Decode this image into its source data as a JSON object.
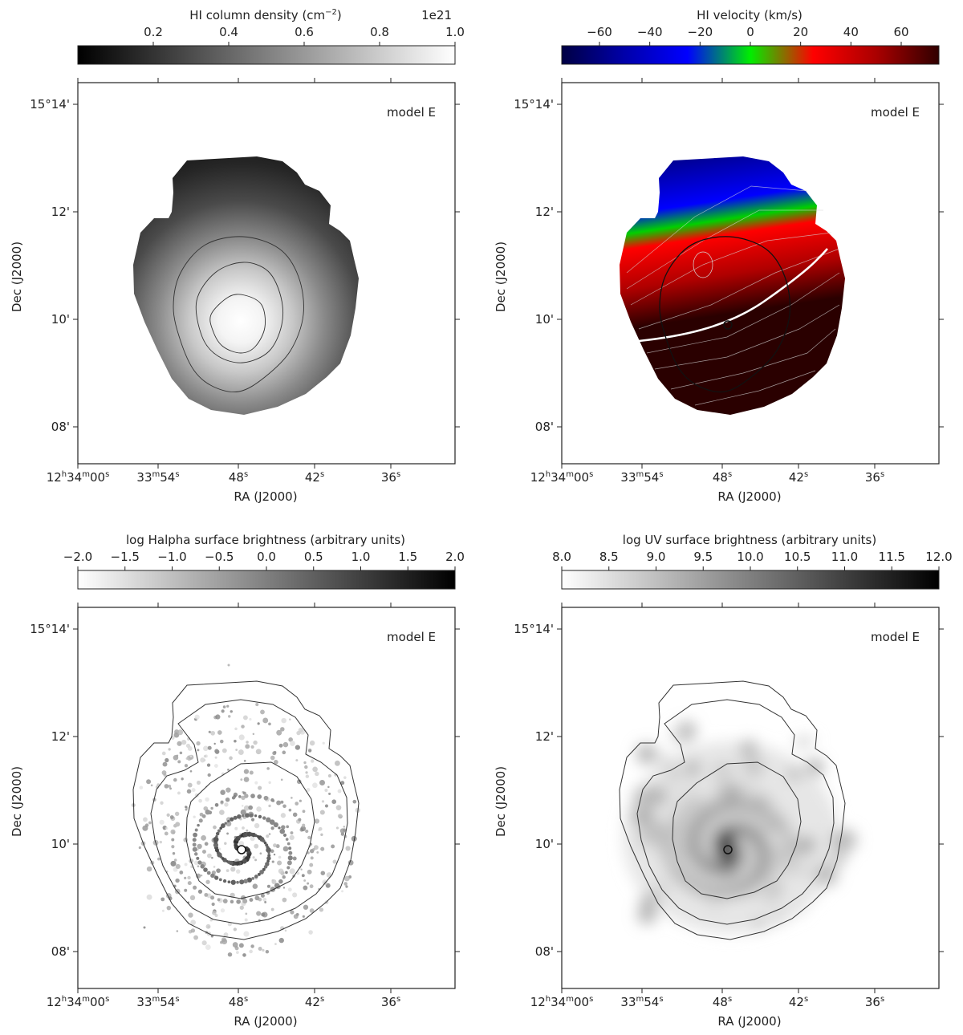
{
  "chart_data": [
    {
      "type": "heatmap",
      "panel": "top-left",
      "annotation": "model E",
      "colorbar": {
        "label": "HI column density (cm−2)",
        "ticks": [
          "0.2",
          "0.4",
          "0.6",
          "0.8",
          "1.0"
        ],
        "tick_values": [
          0.2,
          0.4,
          0.6,
          0.8,
          1.0
        ],
        "range": [
          0.0,
          1.0
        ],
        "scale_text": "1e21",
        "colormap": [
          "#000000",
          "#ffffff"
        ]
      },
      "xlabel": "RA (J2000)",
      "ylabel": "Dec (J2000)",
      "xticks": [
        {
          "h": "12",
          "hu": "h",
          "m": "34",
          "mu": "m",
          "s": "00",
          "su": "s"
        },
        {
          "h": "",
          "hu": "",
          "m": "33",
          "mu": "m",
          "s": "54",
          "su": "s"
        },
        {
          "h": "",
          "hu": "",
          "m": "",
          "mu": "",
          "s": "48",
          "su": "s"
        },
        {
          "h": "",
          "hu": "",
          "m": "",
          "mu": "",
          "s": "42",
          "su": "s"
        },
        {
          "h": "",
          "hu": "",
          "m": "",
          "mu": "",
          "s": "36",
          "su": "s"
        }
      ],
      "yticks": [
        "15°14'",
        "12'",
        "10'",
        "08'"
      ]
    },
    {
      "type": "heatmap",
      "panel": "top-right",
      "annotation": "model E",
      "colorbar": {
        "label": "HI velocity (km/s)",
        "ticks": [
          "−60",
          "−40",
          "−20",
          "0",
          "20",
          "40",
          "60"
        ],
        "tick_values": [
          -60,
          -40,
          -20,
          0,
          20,
          40,
          60
        ],
        "range": [
          -75,
          75
        ],
        "colormap": [
          "#000044",
          "#0000aa",
          "#0000ff",
          "#00ee00",
          "#ff0000",
          "#aa0000",
          "#300000"
        ]
      },
      "xlabel": "RA (J2000)",
      "ylabel": "Dec (J2000)",
      "xticks": [
        {
          "h": "12",
          "hu": "h",
          "m": "34",
          "mu": "m",
          "s": "00",
          "su": "s"
        },
        {
          "h": "",
          "hu": "",
          "m": "33",
          "mu": "m",
          "s": "54",
          "su": "s"
        },
        {
          "h": "",
          "hu": "",
          "m": "",
          "mu": "",
          "s": "48",
          "su": "s"
        },
        {
          "h": "",
          "hu": "",
          "m": "",
          "mu": "",
          "s": "42",
          "su": "s"
        },
        {
          "h": "",
          "hu": "",
          "m": "",
          "mu": "",
          "s": "36",
          "su": "s"
        }
      ],
      "yticks": [
        "15°14'",
        "12'",
        "10'",
        "08'"
      ]
    },
    {
      "type": "heatmap",
      "panel": "bottom-left",
      "annotation": "model E",
      "colorbar": {
        "label": "log Halpha surface brightness (arbitrary units)",
        "ticks": [
          "−2.0",
          "−1.5",
          "−1.0",
          "−0.5",
          "0.0",
          "0.5",
          "1.0",
          "1.5",
          "2.0"
        ],
        "tick_values": [
          -2.0,
          -1.5,
          -1.0,
          -0.5,
          0.0,
          0.5,
          1.0,
          1.5,
          2.0
        ],
        "range": [
          -2.0,
          2.0
        ],
        "colormap": [
          "#ffffff",
          "#000000"
        ]
      },
      "xlabel": "RA (J2000)",
      "ylabel": "Dec (J2000)",
      "xticks": [
        {
          "h": "12",
          "hu": "h",
          "m": "34",
          "mu": "m",
          "s": "00",
          "su": "s"
        },
        {
          "h": "",
          "hu": "",
          "m": "33",
          "mu": "m",
          "s": "54",
          "su": "s"
        },
        {
          "h": "",
          "hu": "",
          "m": "",
          "mu": "",
          "s": "48",
          "su": "s"
        },
        {
          "h": "",
          "hu": "",
          "m": "",
          "mu": "",
          "s": "42",
          "su": "s"
        },
        {
          "h": "",
          "hu": "",
          "m": "",
          "mu": "",
          "s": "36",
          "su": "s"
        }
      ],
      "yticks": [
        "15°14'",
        "12'",
        "10'",
        "08'"
      ]
    },
    {
      "type": "heatmap",
      "panel": "bottom-right",
      "annotation": "model E",
      "colorbar": {
        "label": "log UV surface brightness (arbitrary units)",
        "ticks": [
          "8.0",
          "8.5",
          "9.0",
          "9.5",
          "10.0",
          "10.5",
          "11.0",
          "11.5",
          "12.0"
        ],
        "tick_values": [
          8.0,
          8.5,
          9.0,
          9.5,
          10.0,
          10.5,
          11.0,
          11.5,
          12.0
        ],
        "range": [
          8.0,
          12.0
        ],
        "colormap": [
          "#ffffff",
          "#000000"
        ]
      },
      "xlabel": "RA (J2000)",
      "ylabel": "Dec (J2000)",
      "xticks": [
        {
          "h": "12",
          "hu": "h",
          "m": "34",
          "mu": "m",
          "s": "00",
          "su": "s"
        },
        {
          "h": "",
          "hu": "",
          "m": "33",
          "mu": "m",
          "s": "54",
          "su": "s"
        },
        {
          "h": "",
          "hu": "",
          "m": "",
          "mu": "",
          "s": "48",
          "su": "s"
        },
        {
          "h": "",
          "hu": "",
          "m": "",
          "mu": "",
          "s": "42",
          "su": "s"
        },
        {
          "h": "",
          "hu": "",
          "m": "",
          "mu": "",
          "s": "36",
          "su": "s"
        }
      ],
      "yticks": [
        "15°14'",
        "12'",
        "10'",
        "08'"
      ]
    }
  ]
}
